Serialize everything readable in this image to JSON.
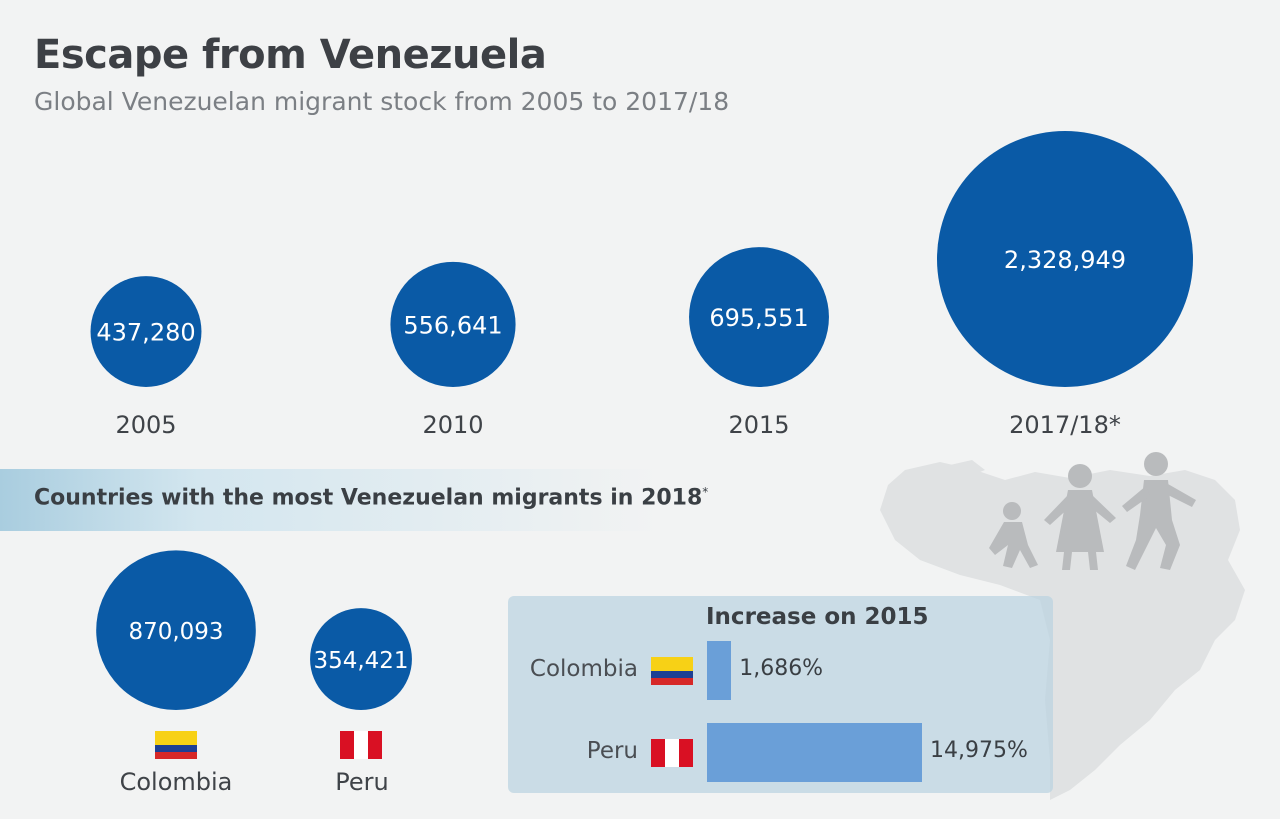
{
  "header": {
    "title": "Escape from Venezuela",
    "subtitle": "Global Venezuelan migrant stock from 2005 to 2017/18"
  },
  "banner": {
    "text": "Countries with the most Venezuelan migrants in 2018",
    "marker": "*"
  },
  "increase_box": {
    "title": "Increase on 2015"
  },
  "colors": {
    "bubble": "#0a5aa6",
    "bar": "#6a9fd8",
    "banner": "#a9cddf",
    "silhouette": "#dfe1e2"
  },
  "icons": [
    "venezuela-map-silhouette-icon",
    "family-walking-icon",
    "colombia-flag-icon",
    "peru-flag-icon"
  ],
  "chart_data": [
    {
      "type": "bubble",
      "categories": [
        "2005",
        "2010",
        "2015",
        "2017/18*"
      ],
      "values": [
        437280,
        556641,
        695551,
        2328949
      ],
      "value_labels": [
        "437,280",
        "556,641",
        "695,551",
        "2,328,949"
      ]
    },
    {
      "type": "bubble",
      "categories": [
        "Colombia",
        "Peru"
      ],
      "values": [
        870093,
        354421
      ],
      "value_labels": [
        "870,093",
        "354,421"
      ]
    },
    {
      "type": "bar",
      "orientation": "horizontal",
      "title": "Increase on 2015",
      "categories": [
        "Colombia",
        "Peru"
      ],
      "values": [
        1686,
        14975
      ],
      "value_labels": [
        "1,686%",
        "14,975%"
      ]
    }
  ]
}
